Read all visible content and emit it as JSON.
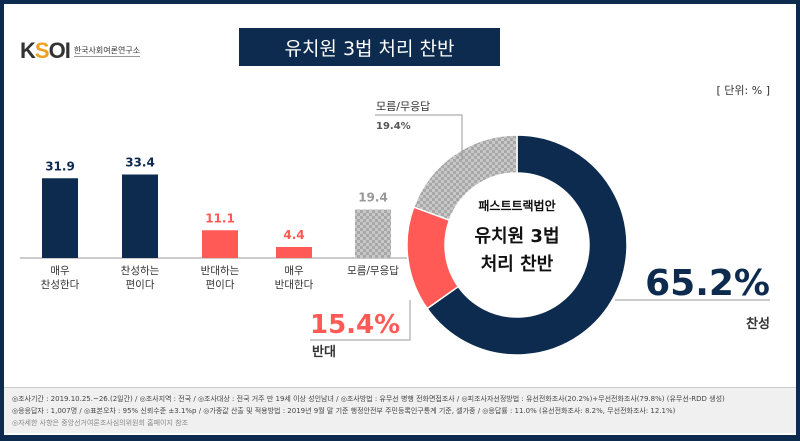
{
  "logo": {
    "mark": "KSOI",
    "subtitle": "한국사회여론연구소"
  },
  "title": "유치원 3법 처리 찬반",
  "unit": "[ 단위: % ]",
  "chart_data": [
    {
      "type": "bar",
      "categories": [
        "매우\n찬성한다",
        "찬성하는\n편이다",
        "반대하는\n편이다",
        "매우\n반대한다",
        "모름/무응답"
      ],
      "values": [
        31.9,
        33.4,
        11.1,
        4.4,
        19.4
      ],
      "labels": [
        "31.9",
        "33.4",
        "11.1",
        "4.4",
        "19.4"
      ],
      "colors": [
        "#0d2b4e",
        "#0d2b4e",
        "#ff5a55",
        "#ff5a55",
        "#bbbbbb"
      ],
      "ylim": [
        0,
        40
      ]
    },
    {
      "type": "pie",
      "donut": true,
      "center_label": [
        "패스트트랙법안",
        "유치원 3법",
        "처리 찬반"
      ],
      "slices": [
        {
          "name": "찬성",
          "value": 65.2,
          "label": "65.2%",
          "color": "#0d2b4e"
        },
        {
          "name": "반대",
          "value": 15.4,
          "label": "15.4%",
          "color": "#ff5a55"
        },
        {
          "name": "모름/무응답",
          "value": 19.4,
          "label": "19.4%",
          "color": "#bbbbbb"
        }
      ]
    }
  ],
  "footer": [
    "◎조사기간 : 2019.10.25.~26.(2일간)  / ◎조사지역 : 전국 / ◎조사대상 : 전국 거주 만 19세 이상 성인남녀 / ◎조사방법 : 유무선 병행 전화면접조사 / ◎피조사자선정방법 : 유선전화조사(20.2%)+무선전화조사(79.8%) (유무선-RDD 생성)",
    "◎응응답자 : 1,007명 / ◎표본오차 : 95% 신뢰수준 ±3.1%p / ◎가중값 산출 및 적용방법 : 2019년 9월 말 기준 행정안전부 주민등록인구통계 기준, 셀가중 / ◎응답률 : 11.0% (유선전화조사: 8.2%, 무선전화조사: 12.1%)",
    "◎자세한 사항은 중앙선거여론조사심의위원회 홈페이지 참조"
  ]
}
